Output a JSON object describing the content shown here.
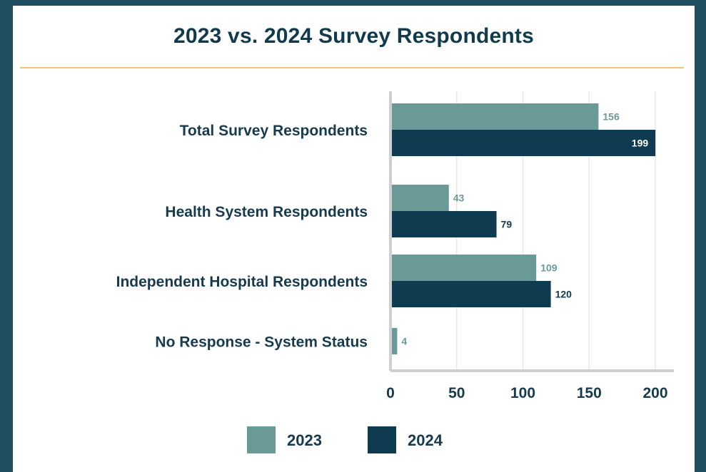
{
  "chart_data": {
    "type": "bar",
    "orientation": "horizontal",
    "title": "2023 vs. 2024 Survey Respondents",
    "categories": [
      "Total Survey Respondents",
      "Health System Respondents",
      "Independent Hospital Respondents",
      "No Response - System Status"
    ],
    "series": [
      {
        "name": "2023",
        "color": "#6a9a98",
        "values": [
          156,
          43,
          109,
          4
        ]
      },
      {
        "name": "2024",
        "color": "#0e3b50",
        "values": [
          199,
          79,
          120,
          null
        ]
      }
    ],
    "xlim": [
      0,
      200
    ],
    "xticks": [
      "0",
      "50",
      "100",
      "150",
      "200"
    ],
    "grid": true,
    "legend": "bottom"
  }
}
